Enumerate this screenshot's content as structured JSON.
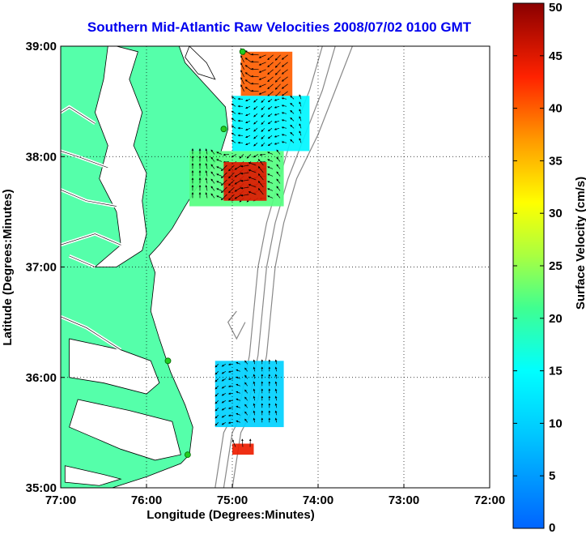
{
  "title": "Southern Mid-Atlantic Raw Velocities 2008/07/02 0100 GMT",
  "xlabel": "Longitude (Degrees:Minutes)",
  "ylabel": "Latitude (Degrees:Minutes)",
  "colorbar_label": "Surface Velocity (cm/s)",
  "x_ticks": [
    {
      "value": -77,
      "label": "77:00"
    },
    {
      "value": -76,
      "label": "76:00"
    },
    {
      "value": -75,
      "label": "75:00"
    },
    {
      "value": -74,
      "label": "74:00"
    },
    {
      "value": -73,
      "label": "73:00"
    },
    {
      "value": -72,
      "label": "72:00"
    }
  ],
  "y_ticks": [
    {
      "value": 35,
      "label": "35:00"
    },
    {
      "value": 36,
      "label": "36:00"
    },
    {
      "value": 37,
      "label": "37:00"
    },
    {
      "value": 38,
      "label": "38:00"
    },
    {
      "value": 39,
      "label": "39:00"
    }
  ],
  "colorbar_ticks": [
    {
      "value": 0,
      "label": "0"
    },
    {
      "value": 5,
      "label": "5"
    },
    {
      "value": 10,
      "label": "10"
    },
    {
      "value": 15,
      "label": "15"
    },
    {
      "value": 20,
      "label": "20"
    },
    {
      "value": 25,
      "label": "25"
    },
    {
      "value": 30,
      "label": "30"
    },
    {
      "value": 35,
      "label": "35"
    },
    {
      "value": 40,
      "label": "40"
    },
    {
      "value": 45,
      "label": "45"
    },
    {
      "value": 50,
      "label": "50"
    }
  ],
  "colors": {
    "land": "#55ffaa",
    "water": "#ffffff",
    "title": "#0000ee",
    "bathymetry": "#888888",
    "station": "#22cc22"
  },
  "chart_data": {
    "type": "heatmap",
    "xlim": [
      -77,
      -72
    ],
    "ylim": [
      35,
      39
    ],
    "clim": [
      0,
      50
    ],
    "colormap": "jet",
    "grid": true,
    "stations": [
      {
        "lon": -74.88,
        "lat": 38.95
      },
      {
        "lon": -75.1,
        "lat": 38.25
      },
      {
        "lon": -75.75,
        "lat": 36.15
      },
      {
        "lon": -75.52,
        "lat": 35.3
      }
    ],
    "velocity_regions": [
      {
        "lon_range": [
          -74.9,
          -74.3
        ],
        "lat_range": [
          38.55,
          38.95
        ],
        "speed": 40
      },
      {
        "lon_range": [
          -75.0,
          -74.1
        ],
        "lat_range": [
          38.05,
          38.55
        ],
        "speed": 14
      },
      {
        "lon_range": [
          -75.5,
          -74.4
        ],
        "lat_range": [
          37.55,
          38.05
        ],
        "speed": 22
      },
      {
        "lon_range": [
          -75.1,
          -74.6
        ],
        "lat_range": [
          37.6,
          37.95
        ],
        "speed": 45
      },
      {
        "lon_range": [
          -75.2,
          -74.4
        ],
        "lat_range": [
          35.55,
          36.15
        ],
        "speed": 10
      },
      {
        "lon_range": [
          -75.0,
          -74.75
        ],
        "lat_range": [
          35.3,
          35.4
        ],
        "speed": 44
      }
    ]
  }
}
